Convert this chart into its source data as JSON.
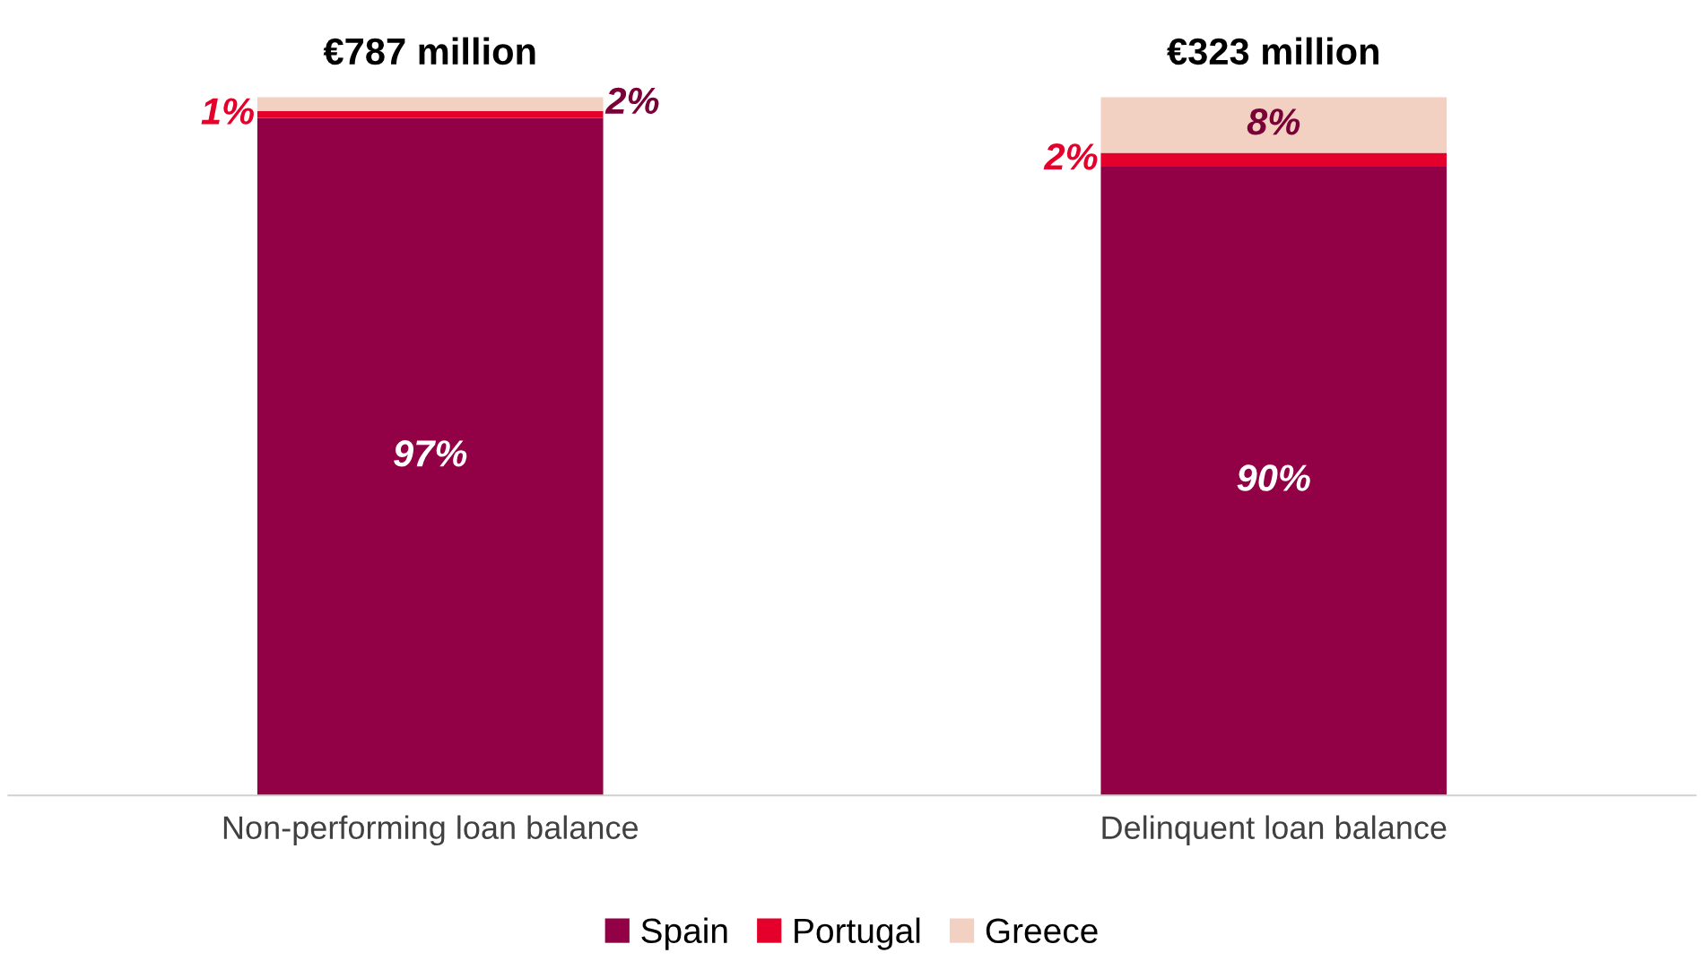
{
  "chart_data": {
    "type": "bar",
    "stacked": true,
    "categories": [
      "Non-performing loan balance",
      "Delinquent loan balance"
    ],
    "series": [
      {
        "name": "Spain",
        "color": "#920045",
        "values": [
          97,
          90
        ],
        "value_labels": [
          "97%",
          "90%"
        ]
      },
      {
        "name": "Portugal",
        "color": "#e4002b",
        "values": [
          1,
          2
        ],
        "value_labels": [
          "1%",
          "2%"
        ]
      },
      {
        "name": "Greece",
        "color": "#f2d0c2",
        "values": [
          2,
          8
        ],
        "value_labels": [
          "2%",
          "8%"
        ]
      }
    ],
    "annotations": [
      {
        "text": "€787 million",
        "x": "Non-performing loan balance",
        "y": 100
      },
      {
        "text": "€323 million",
        "x": "Delinquent loan balance",
        "y": 100
      }
    ],
    "legend": "bottom",
    "grid": false
  }
}
